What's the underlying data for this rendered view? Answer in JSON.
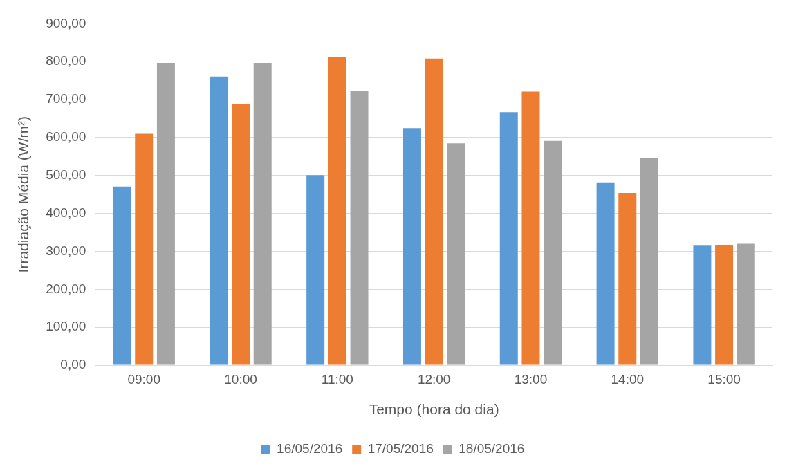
{
  "chart_data": {
    "type": "bar",
    "xlabel": "Tempo (hora do dia)",
    "ylabel": "Irradiação Média (W/m²)",
    "categories": [
      "09:00",
      "10:00",
      "11:00",
      "12:00",
      "13:00",
      "14:00",
      "15:00"
    ],
    "series": [
      {
        "name": "16/05/2016",
        "color": "#5b9bd5",
        "values": [
          471,
          761,
          501,
          625,
          667,
          482,
          315
        ]
      },
      {
        "name": "17/05/2016",
        "color": "#ed7d31",
        "values": [
          610,
          688,
          812,
          808,
          721,
          454,
          317
        ]
      },
      {
        "name": "18/05/2016",
        "color": "#a5a5a5",
        "values": [
          797,
          797,
          723,
          585,
          591,
          545,
          320
        ]
      }
    ],
    "ylim": [
      0,
      900
    ],
    "yticks": [
      {
        "value": 0,
        "label": "0,00"
      },
      {
        "value": 100,
        "label": "100,00"
      },
      {
        "value": 200,
        "label": "200,00"
      },
      {
        "value": 300,
        "label": "300,00"
      },
      {
        "value": 400,
        "label": "400,00"
      },
      {
        "value": 500,
        "label": "500,00"
      },
      {
        "value": 600,
        "label": "600,00"
      },
      {
        "value": 700,
        "label": "700,00"
      },
      {
        "value": 800,
        "label": "800,00"
      },
      {
        "value": 900,
        "label": "900,00"
      }
    ],
    "grid": "y",
    "legend": "bottom"
  }
}
